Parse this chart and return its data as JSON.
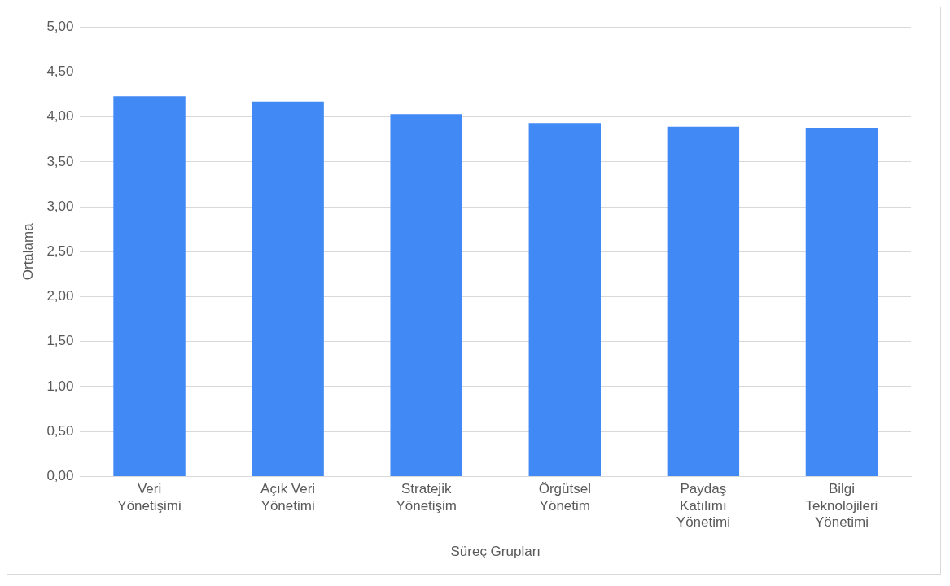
{
  "chart_data": {
    "type": "bar",
    "xlabel": "Süreç Grupları",
    "ylabel": "Ortalama",
    "categories": [
      "Veri Yönetişimi",
      "Açık Veri Yönetimi",
      "Stratejik Yönetişim",
      "Örgütsel Yönetim",
      "Paydaş Katılımı Yönetimi",
      "Bilgi Teknolojileri Yönetimi"
    ],
    "values": [
      4.23,
      4.17,
      4.03,
      3.93,
      3.89,
      3.88
    ],
    "color": "#4189f5",
    "ylim": [
      0,
      5
    ],
    "yticks": [
      {
        "value": 0,
        "label": "0,00"
      },
      {
        "value": 0.5,
        "label": "0,50"
      },
      {
        "value": 1,
        "label": "1,00"
      },
      {
        "value": 1.5,
        "label": "1,50"
      },
      {
        "value": 2,
        "label": "2,00"
      },
      {
        "value": 2.5,
        "label": "2,50"
      },
      {
        "value": 3,
        "label": "3,00"
      },
      {
        "value": 3.5,
        "label": "3,50"
      },
      {
        "value": 4,
        "label": "4,00"
      },
      {
        "value": 4.5,
        "label": "4,50"
      },
      {
        "value": 5,
        "label": "5,00"
      }
    ],
    "grid": "y",
    "legend": false
  }
}
